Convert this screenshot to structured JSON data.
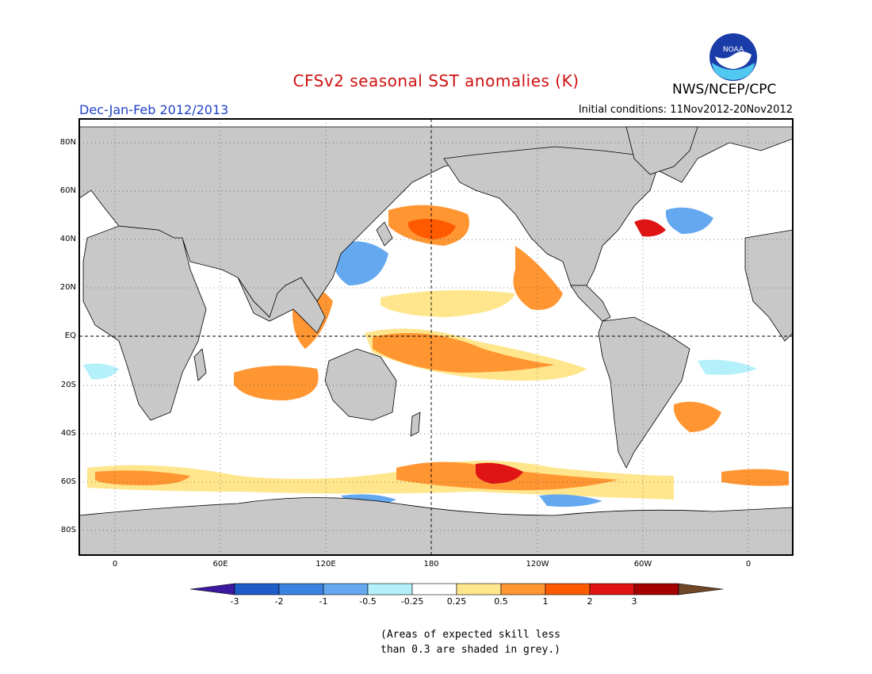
{
  "title": "CFSv2 seasonal SST anomalies (K)",
  "season": "Dec-Jan-Feb 2012/2013",
  "initial_conditions": "Initial conditions: 11Nov2012-20Nov2012",
  "agency": "NWS/NCEP/CPC",
  "logo_text": "NOAA",
  "map": {
    "projection": "equirectangular",
    "lon_range": [
      -20,
      380
    ],
    "lat_range": [
      -90,
      90
    ],
    "lat_labels": [
      "80N",
      "60N",
      "40N",
      "20N",
      "EQ",
      "20S",
      "40S",
      "60S",
      "80S"
    ],
    "lon_labels": [
      "0",
      "60E",
      "120E",
      "180",
      "120W",
      "60W",
      "0"
    ],
    "land_color": "#c8c8c8",
    "ocean_color": "#ffffff",
    "grid": "dotted"
  },
  "colorbar": {
    "labels": [
      "-3",
      "-2",
      "-1",
      "-0.5",
      "-0.25",
      "0.25",
      "0.5",
      "1",
      "2",
      "3"
    ],
    "colors": [
      "#3c1aa0",
      "#1e5cc8",
      "#3c82e0",
      "#64a8f0",
      "#b4f0fa",
      "#ffffff",
      "#ffe68c",
      "#ff9632",
      "#ff5a00",
      "#e01414",
      "#a50000",
      "#6e4628"
    ]
  },
  "note": {
    "line1": "(Areas of expected skill less",
    "line2": "than 0.3 are shaded in grey.)"
  }
}
